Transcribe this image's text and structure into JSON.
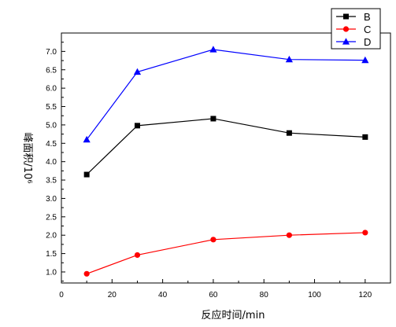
{
  "chart_data": {
    "type": "line",
    "xlabel": "反应时间/min",
    "ylabel": "峰面积/10⁶",
    "xlim": [
      0,
      130
    ],
    "ylim": [
      0.7,
      7.5
    ],
    "xticks": [
      0,
      20,
      40,
      60,
      80,
      100,
      120
    ],
    "yticks": [
      1.0,
      1.5,
      2.0,
      2.5,
      3.0,
      3.5,
      4.0,
      4.5,
      5.0,
      5.5,
      6.0,
      6.5,
      7.0
    ],
    "ytick_labels": [
      "1.0",
      "1.5",
      "2.0",
      "2.5",
      "3.0",
      "3.5",
      "4.0",
      "4.5",
      "5.0",
      "5.5",
      "6.0",
      "6.5",
      "7.0"
    ],
    "grid": false,
    "legend_position": "top-right",
    "x": [
      10,
      30,
      60,
      90,
      120
    ],
    "series": [
      {
        "name": "B",
        "color": "#000000",
        "marker": "square",
        "values": [
          3.65,
          4.98,
          5.17,
          4.78,
          4.67
        ]
      },
      {
        "name": "C",
        "color": "#ff0000",
        "marker": "circle",
        "values": [
          0.95,
          1.46,
          1.88,
          2.0,
          2.07
        ]
      },
      {
        "name": "D",
        "color": "#0000ff",
        "marker": "triangle",
        "values": [
          4.6,
          6.44,
          7.05,
          6.78,
          6.76
        ]
      }
    ]
  }
}
